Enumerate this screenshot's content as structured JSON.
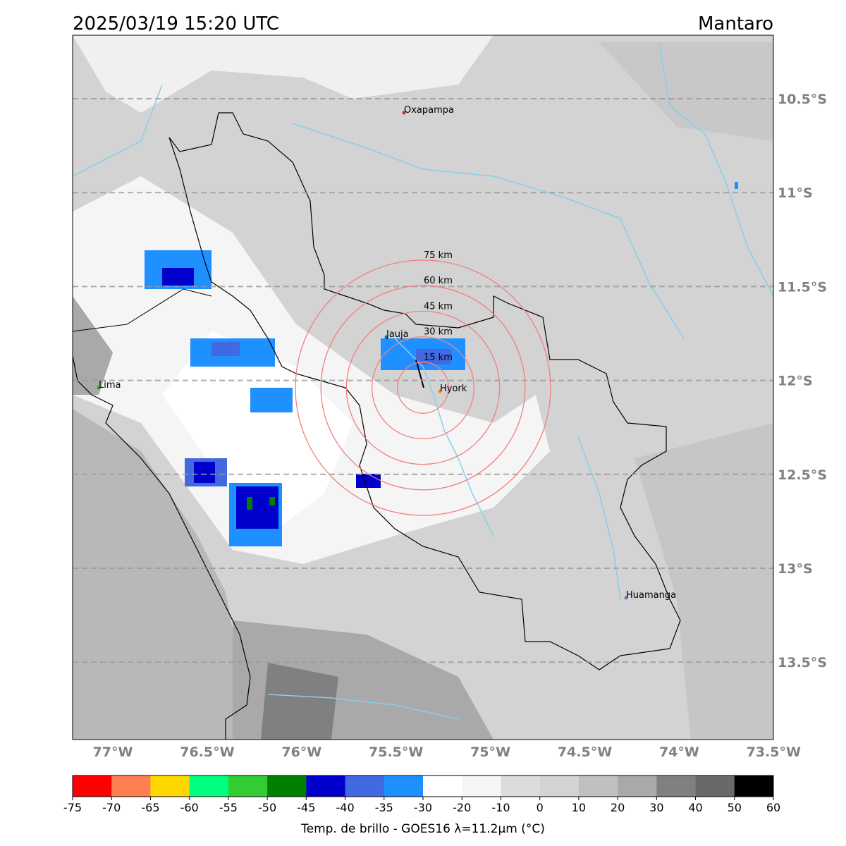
{
  "title_left": "2025/03/19 15:20 UTC",
  "title_right": "Mantaro",
  "lat_labels": [
    "10.5°S",
    "11°S",
    "11.5°S",
    "12°S",
    "12.5°S",
    "13°S",
    "13.5°S"
  ],
  "lon_labels": [
    "77°W",
    "76.5°W",
    "76°W",
    "75.5°W",
    "75°W",
    "74.5°W",
    "74°W",
    "73.5°W"
  ],
  "places": [
    {
      "name": "Oxapampa",
      "color": "#d62728"
    },
    {
      "name": "Jauja",
      "color": "#1f77b4"
    },
    {
      "name": "Hyork",
      "color": "#ff7f0e"
    },
    {
      "name": "Lima",
      "color": "#2ca02c"
    },
    {
      "name": "Huamanga",
      "color": "#9467bd"
    }
  ],
  "rings": [
    "15 km",
    "30 km",
    "45 km",
    "60 km",
    "75 km"
  ],
  "colorbar": {
    "label": "Temp. de brillo - GOES16 λ=11.2μm (°C)",
    "ticks": [
      -75,
      -70,
      -65,
      -60,
      -55,
      -50,
      -45,
      -40,
      -35,
      -30,
      -20,
      -10,
      0,
      10,
      20,
      30,
      40,
      50,
      60
    ],
    "colors": [
      "#ff0000",
      "#ff7f50",
      "#ffd700",
      "#00ff7f",
      "#32cd32",
      "#008000",
      "#0000cd",
      "#4169e1",
      "#1e90ff",
      "#ffffff",
      "#f5f5f5",
      "#dcdcdc",
      "#d3d3d3",
      "#c0c0c0",
      "#a9a9a9",
      "#808080",
      "#696969",
      "#000000"
    ]
  }
}
